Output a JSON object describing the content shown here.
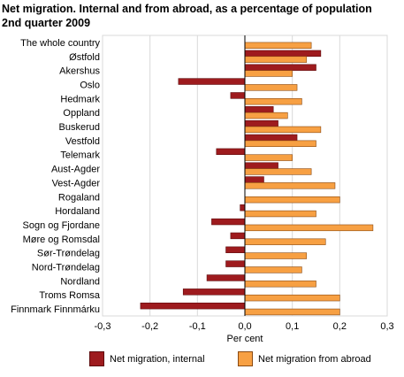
{
  "title_line1": "Net migration. Internal and from abroad, as a percentage of population",
  "title_line2": "2nd quarter 2009",
  "chart_data": {
    "type": "bar",
    "orientation": "horizontal",
    "categories": [
      "The whole country",
      "Østfold",
      "Akershus",
      "Oslo",
      "Hedmark",
      "Oppland",
      "Buskerud",
      "Vestfold",
      "Telemark",
      "Aust-Agder",
      "Vest-Agder",
      "Rogaland",
      "Hordaland",
      "Sogn og Fjordane",
      "Møre og Romsdal",
      "Sør-Trøndelag",
      "Nord-Trøndelag",
      "Nordland",
      "Troms Romsa",
      "Finnmark Finnmárku"
    ],
    "series": [
      {
        "name": "Net migration, internal",
        "color": "#9e1b1e",
        "values": [
          0,
          0.16,
          0.15,
          -0.14,
          -0.03,
          0.06,
          0.07,
          0.11,
          -0.06,
          0.07,
          0.04,
          0,
          -0.01,
          -0.07,
          -0.03,
          -0.04,
          -0.04,
          -0.08,
          -0.13,
          -0.22
        ]
      },
      {
        "name": "Net migration from abroad",
        "color": "#f7a043",
        "values": [
          0.14,
          0.13,
          0.1,
          0.11,
          0.12,
          0.09,
          0.16,
          0.15,
          0.1,
          0.14,
          0.19,
          0.2,
          0.15,
          0.27,
          0.17,
          0.13,
          0.12,
          0.15,
          0.2,
          0.2
        ]
      }
    ],
    "xlim": [
      -0.3,
      0.3
    ],
    "xticks": [
      "-0,3",
      "-0,2",
      "-0,1",
      "0,0",
      "0,1",
      "0,2",
      "0,3"
    ],
    "xlabel": "Per cent",
    "grid": "vertical",
    "legend_position": "bottom"
  }
}
